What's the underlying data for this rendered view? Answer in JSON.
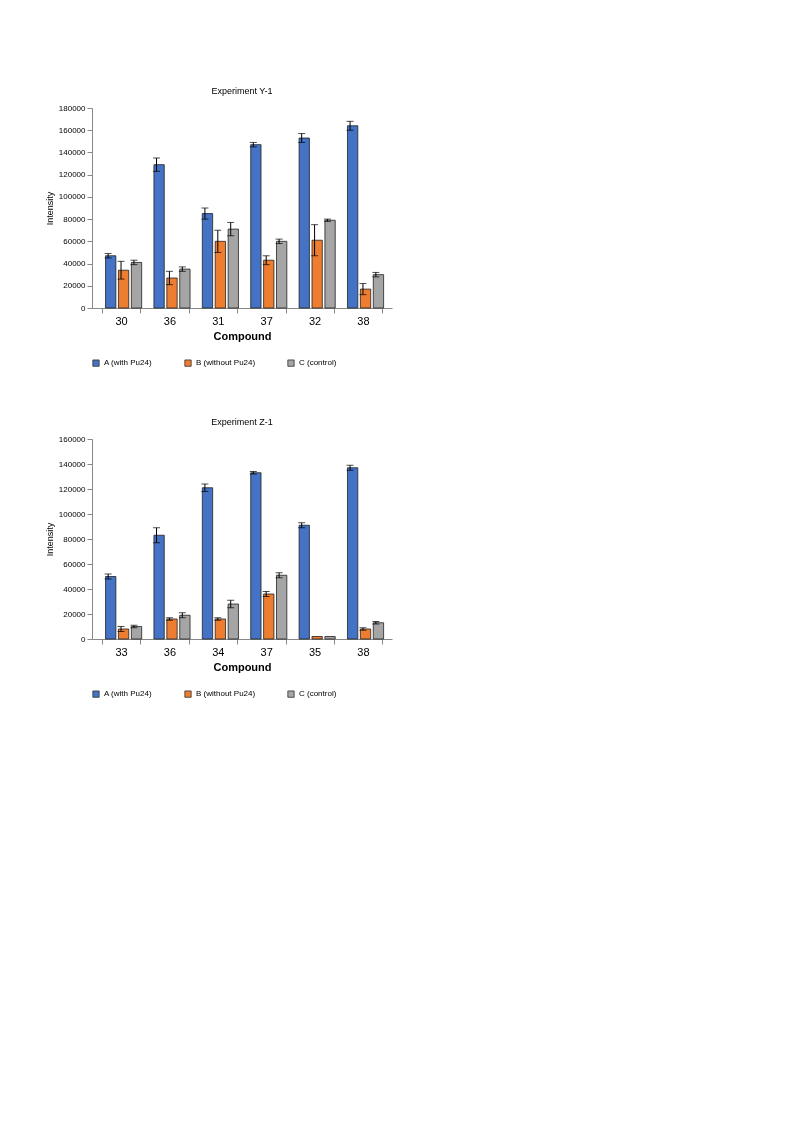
{
  "chart_data": [
    {
      "type": "bar",
      "title": "Experiment Y-1",
      "xlabel": "Compound",
      "ylabel": "Intensity",
      "categories": [
        "30",
        "36",
        "31",
        "37",
        "32",
        "38"
      ],
      "ylim": [
        0,
        180000
      ],
      "yticks": [
        0,
        20000,
        40000,
        60000,
        80000,
        100000,
        120000,
        140000,
        160000,
        180000
      ],
      "grid": false,
      "legend": "bottom",
      "series": [
        {
          "name": "A (with Pu24)",
          "color": "#4472c4",
          "values": [
            47000,
            129000,
            85000,
            147000,
            153000,
            164000
          ],
          "errors": [
            2000,
            6000,
            5000,
            2000,
            4000,
            4000
          ]
        },
        {
          "name": "B (without Pu24)",
          "color": "#ed7d31",
          "values": [
            34000,
            27000,
            60000,
            43000,
            61000,
            17000
          ],
          "errors": [
            8000,
            6000,
            10000,
            4000,
            14000,
            5000
          ]
        },
        {
          "name": "C (control)",
          "color": "#a5a5a5",
          "values": [
            41000,
            35000,
            71000,
            60000,
            79000,
            30000
          ],
          "errors": [
            2000,
            2000,
            6000,
            2000,
            1000,
            2000
          ]
        }
      ]
    },
    {
      "type": "bar",
      "title": "Experiment Z-1",
      "xlabel": "Compound",
      "ylabel": "Intensity",
      "categories": [
        "33",
        "36",
        "34",
        "37",
        "35",
        "38"
      ],
      "ylim": [
        0,
        160000
      ],
      "yticks": [
        0,
        20000,
        40000,
        60000,
        80000,
        100000,
        120000,
        140000,
        160000
      ],
      "grid": false,
      "legend": "bottom",
      "series": [
        {
          "name": "A (with Pu24)",
          "color": "#4472c4",
          "values": [
            50000,
            83000,
            121000,
            133000,
            91000,
            137000
          ],
          "errors": [
            2000,
            6000,
            3000,
            1000,
            2000,
            2000
          ]
        },
        {
          "name": "B (without Pu24)",
          "color": "#ed7d31",
          "values": [
            8000,
            16000,
            16000,
            36000,
            2000,
            8000
          ],
          "errors": [
            2000,
            1000,
            1000,
            2000,
            null,
            1000
          ]
        },
        {
          "name": "C (control)",
          "color": "#a5a5a5",
          "values": [
            10000,
            19000,
            28000,
            51000,
            2000,
            13000
          ],
          "errors": [
            1000,
            2000,
            3000,
            2000,
            null,
            1000
          ]
        }
      ]
    }
  ]
}
